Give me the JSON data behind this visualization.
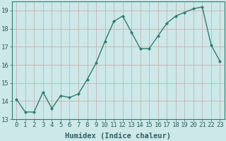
{
  "xlabel": "Humidex (Indice chaleur)",
  "x": [
    0,
    1,
    2,
    3,
    4,
    5,
    6,
    7,
    8,
    9,
    10,
    11,
    12,
    13,
    14,
    15,
    16,
    17,
    18,
    19,
    20,
    21,
    22,
    23
  ],
  "y": [
    14.1,
    13.4,
    13.4,
    14.5,
    13.6,
    14.3,
    14.2,
    14.4,
    15.2,
    16.1,
    17.3,
    18.4,
    18.7,
    17.8,
    16.9,
    16.9,
    17.6,
    18.3,
    18.7,
    18.9,
    19.1,
    19.2,
    17.1,
    16.2
  ],
  "line_color": "#2e7d6e",
  "marker": "D",
  "marker_size": 2.0,
  "line_width": 1.0,
  "background_color": "#cce8e8",
  "grid_color": "#b8d4d4",
  "ylim": [
    13,
    19.5
  ],
  "yticks": [
    13,
    14,
    15,
    16,
    17,
    18,
    19
  ],
  "xlim": [
    -0.5,
    23.5
  ],
  "xticks": [
    0,
    1,
    2,
    3,
    4,
    5,
    6,
    7,
    8,
    9,
    10,
    11,
    12,
    13,
    14,
    15,
    16,
    17,
    18,
    19,
    20,
    21,
    22,
    23
  ],
  "tick_fontsize": 6.5,
  "xlabel_fontsize": 7.5,
  "label_color": "#2e6060"
}
